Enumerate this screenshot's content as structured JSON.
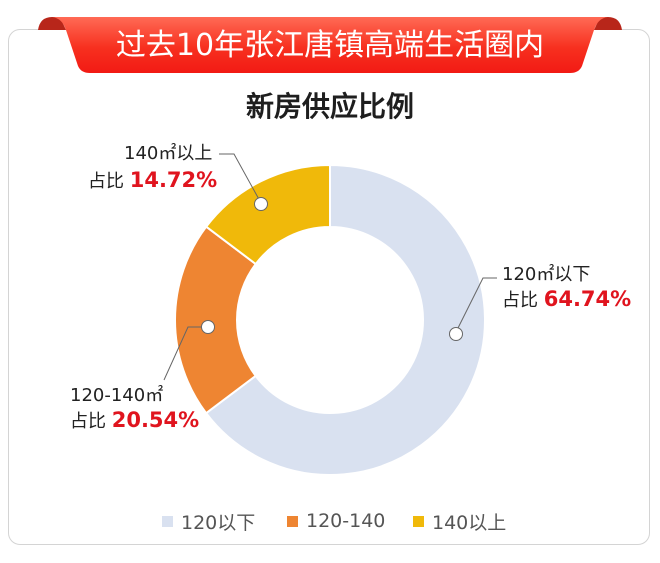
{
  "banner": {
    "title": "过去10年张江唐镇高端生活圈内",
    "color": "#f5231e",
    "curl_color": "#b8261a"
  },
  "chart_data": {
    "type": "pie",
    "variant": "donut",
    "title": "新房供应比例",
    "categories": [
      "120以下",
      "120-140",
      "140以上"
    ],
    "values": [
      64.74,
      20.54,
      14.72
    ],
    "unit": "%",
    "colors": [
      "#d9e1f0",
      "#ee8532",
      "#f0b90a"
    ],
    "legend_position": "bottom",
    "annotations": [
      {
        "label": "120㎡以下",
        "text": "占比",
        "value": "64.74%"
      },
      {
        "label": "120-140㎡",
        "text": "占比",
        "value": "20.54%"
      },
      {
        "label": "140㎡以上",
        "text": "占比",
        "value": "14.72%"
      }
    ]
  },
  "labels": {
    "seg1": {
      "name": "120㎡以下",
      "prefix": "占比 ",
      "pct": "64.74%"
    },
    "seg2": {
      "name": "120-140㎡",
      "prefix": "占比 ",
      "pct": "20.54%"
    },
    "seg3": {
      "name": "140㎡以上",
      "prefix": "占比 ",
      "pct": "14.72%"
    }
  },
  "legend": {
    "items": [
      {
        "label": "120以下",
        "color": "#d9e1f0"
      },
      {
        "label": "120-140",
        "color": "#ee8532"
      },
      {
        "label": "140以上",
        "color": "#f0b90a"
      }
    ]
  }
}
